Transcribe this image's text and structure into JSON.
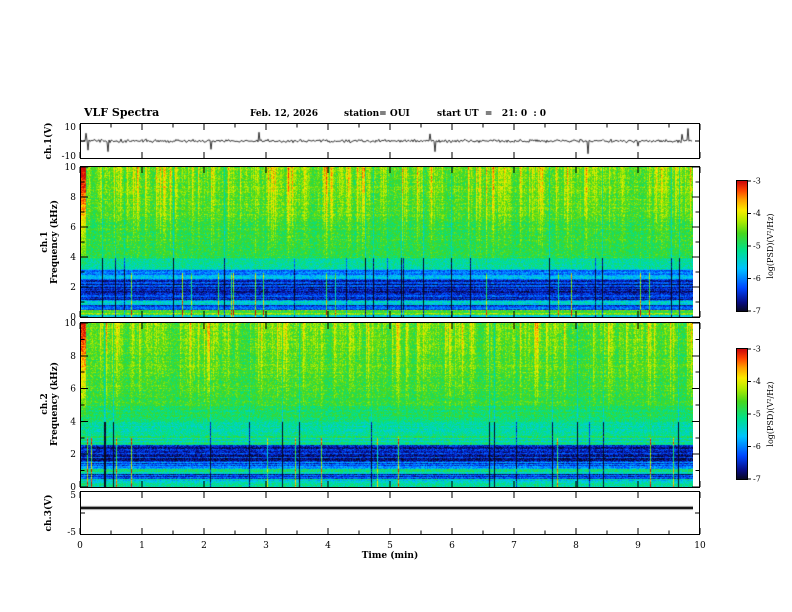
{
  "title": "VLF Spectra",
  "header": {
    "date": "Feb. 12, 2026",
    "station": "station= OUI",
    "start_ut": "start UT  =   21: 0  : 0"
  },
  "axes": {
    "x": {
      "label": "Time (min)",
      "min": 0,
      "max": 10,
      "ticks": [
        0,
        1,
        2,
        3,
        4,
        5,
        6,
        7,
        8,
        9,
        10
      ]
    },
    "ch1v": {
      "label": "ch.1(V)",
      "min": -10,
      "max": 10,
      "tick_labels": [
        "10",
        "-10"
      ]
    },
    "spec1": {
      "channel": "ch.1",
      "label": "Frequency (kHz)",
      "min": 0,
      "max": 10,
      "ticks": [
        0,
        2,
        4,
        6,
        8,
        10
      ]
    },
    "spec2": {
      "channel": "ch.2",
      "label": "Frequency (kHz)",
      "min": 0,
      "max": 10,
      "ticks": [
        0,
        2,
        4,
        6,
        8,
        10
      ]
    },
    "ch3v": {
      "label": "ch.3(V)",
      "min": -5,
      "max": 5,
      "tick_labels": [
        "5",
        "-5"
      ]
    }
  },
  "colorbar": {
    "label": "log(PSD)(V²/Hz)",
    "min": -7,
    "max": -3,
    "ticks": [
      -3,
      -4,
      -5,
      -6,
      -7
    ]
  },
  "chart_data": [
    {
      "id": "ch1_waveform",
      "type": "line",
      "ylabel": "ch.1(V)",
      "xlabel": "Time (min)",
      "xlim": [
        0,
        10
      ],
      "ylim": [
        -10,
        10
      ],
      "description": "Broadband noise voltage trace centered on 0 V, typical excursion about ±1 V with intermittent impulsive spikes reaching roughly ±8 V over the full 10 minutes",
      "baseline_v": 0,
      "noise_amp_v": 0.9,
      "spike_rate": 0.012,
      "spike_amp_v": 8
    },
    {
      "id": "ch1_spectrogram",
      "type": "heatmap",
      "title": "ch.1 VLF spectrogram",
      "xlabel": "Time (min)",
      "ylabel": "Frequency (kHz)",
      "xlim": [
        0,
        10
      ],
      "ylim": [
        0,
        10
      ],
      "clim": [
        -7,
        -3
      ],
      "colorbar_label": "log(PSD)(V²/Hz)",
      "bands": [
        {
          "range": [
            6.5,
            10
          ],
          "level": -4.8
        },
        {
          "range": [
            4,
            6.5
          ],
          "level": -4.9
        },
        {
          "range": [
            3.2,
            4
          ],
          "level": -5.2
        },
        {
          "range": [
            2.6,
            3.2
          ],
          "level": -5.9
        },
        {
          "range": [
            1.2,
            2.6
          ],
          "level": -6.5
        },
        {
          "range": [
            0.8,
            1.2
          ],
          "level": -5.7
        },
        {
          "range": [
            0.5,
            0.8
          ],
          "level": -6.3
        },
        {
          "range": [
            0.3,
            0.5
          ],
          "level": -4.6
        },
        {
          "range": [
            0.15,
            0.3
          ],
          "level": -4.2
        },
        {
          "range": [
            0,
            0.15
          ],
          "level": -5.6
        }
      ],
      "texture": {
        "streak_min_khz": 3,
        "streak_strength": 0.55,
        "drop_rate": 0.035,
        "seed": 11
      },
      "description": "Green/yellow broadband power above ~3 kHz with frequent red impulsive vertical bursts; dark navy low-power band ~1.2–2.6 kHz with horizontal line structure; bright narrow lines below 0.5 kHz"
    },
    {
      "id": "ch2_spectrogram",
      "type": "heatmap",
      "title": "ch.2 VLF spectrogram",
      "xlabel": "Time (min)",
      "ylabel": "Frequency (kHz)",
      "xlim": [
        0,
        10
      ],
      "ylim": [
        0,
        10
      ],
      "clim": [
        -7,
        -3
      ],
      "colorbar_label": "log(PSD)(V²/Hz)",
      "bands": [
        {
          "range": [
            5,
            10
          ],
          "level": -4.8
        },
        {
          "range": [
            4,
            5
          ],
          "level": -5.0
        },
        {
          "range": [
            2.6,
            4
          ],
          "level": -5.25
        },
        {
          "range": [
            1.6,
            2.6
          ],
          "level": -6.5
        },
        {
          "range": [
            1.1,
            1.6
          ],
          "level": -6.2
        },
        {
          "range": [
            0.8,
            1.1
          ],
          "level": -5.2
        },
        {
          "range": [
            0.5,
            0.8
          ],
          "level": -6.4
        },
        {
          "range": [
            0,
            0.5
          ],
          "level": -5.4
        }
      ],
      "texture": {
        "streak_min_khz": 3.5,
        "streak_strength": 0.5,
        "drop_rate": 0.03,
        "seed": 77
      },
      "description": "Green broadband power above ~4 kHz with red vertical bursts; cyan speckle 2.6–4 kHz; dark navy band 1.6–2.6 kHz; bright narrow lines near 1 kHz and below"
    },
    {
      "id": "ch3_waveform",
      "type": "line",
      "ylabel": "ch.3(V)",
      "xlabel": "Time (min)",
      "xlim": [
        0,
        10
      ],
      "ylim": [
        -5,
        5
      ],
      "value_v": 1.2,
      "description": "Flat constant thick line at about +1.2 V across the full 10 minutes"
    }
  ]
}
